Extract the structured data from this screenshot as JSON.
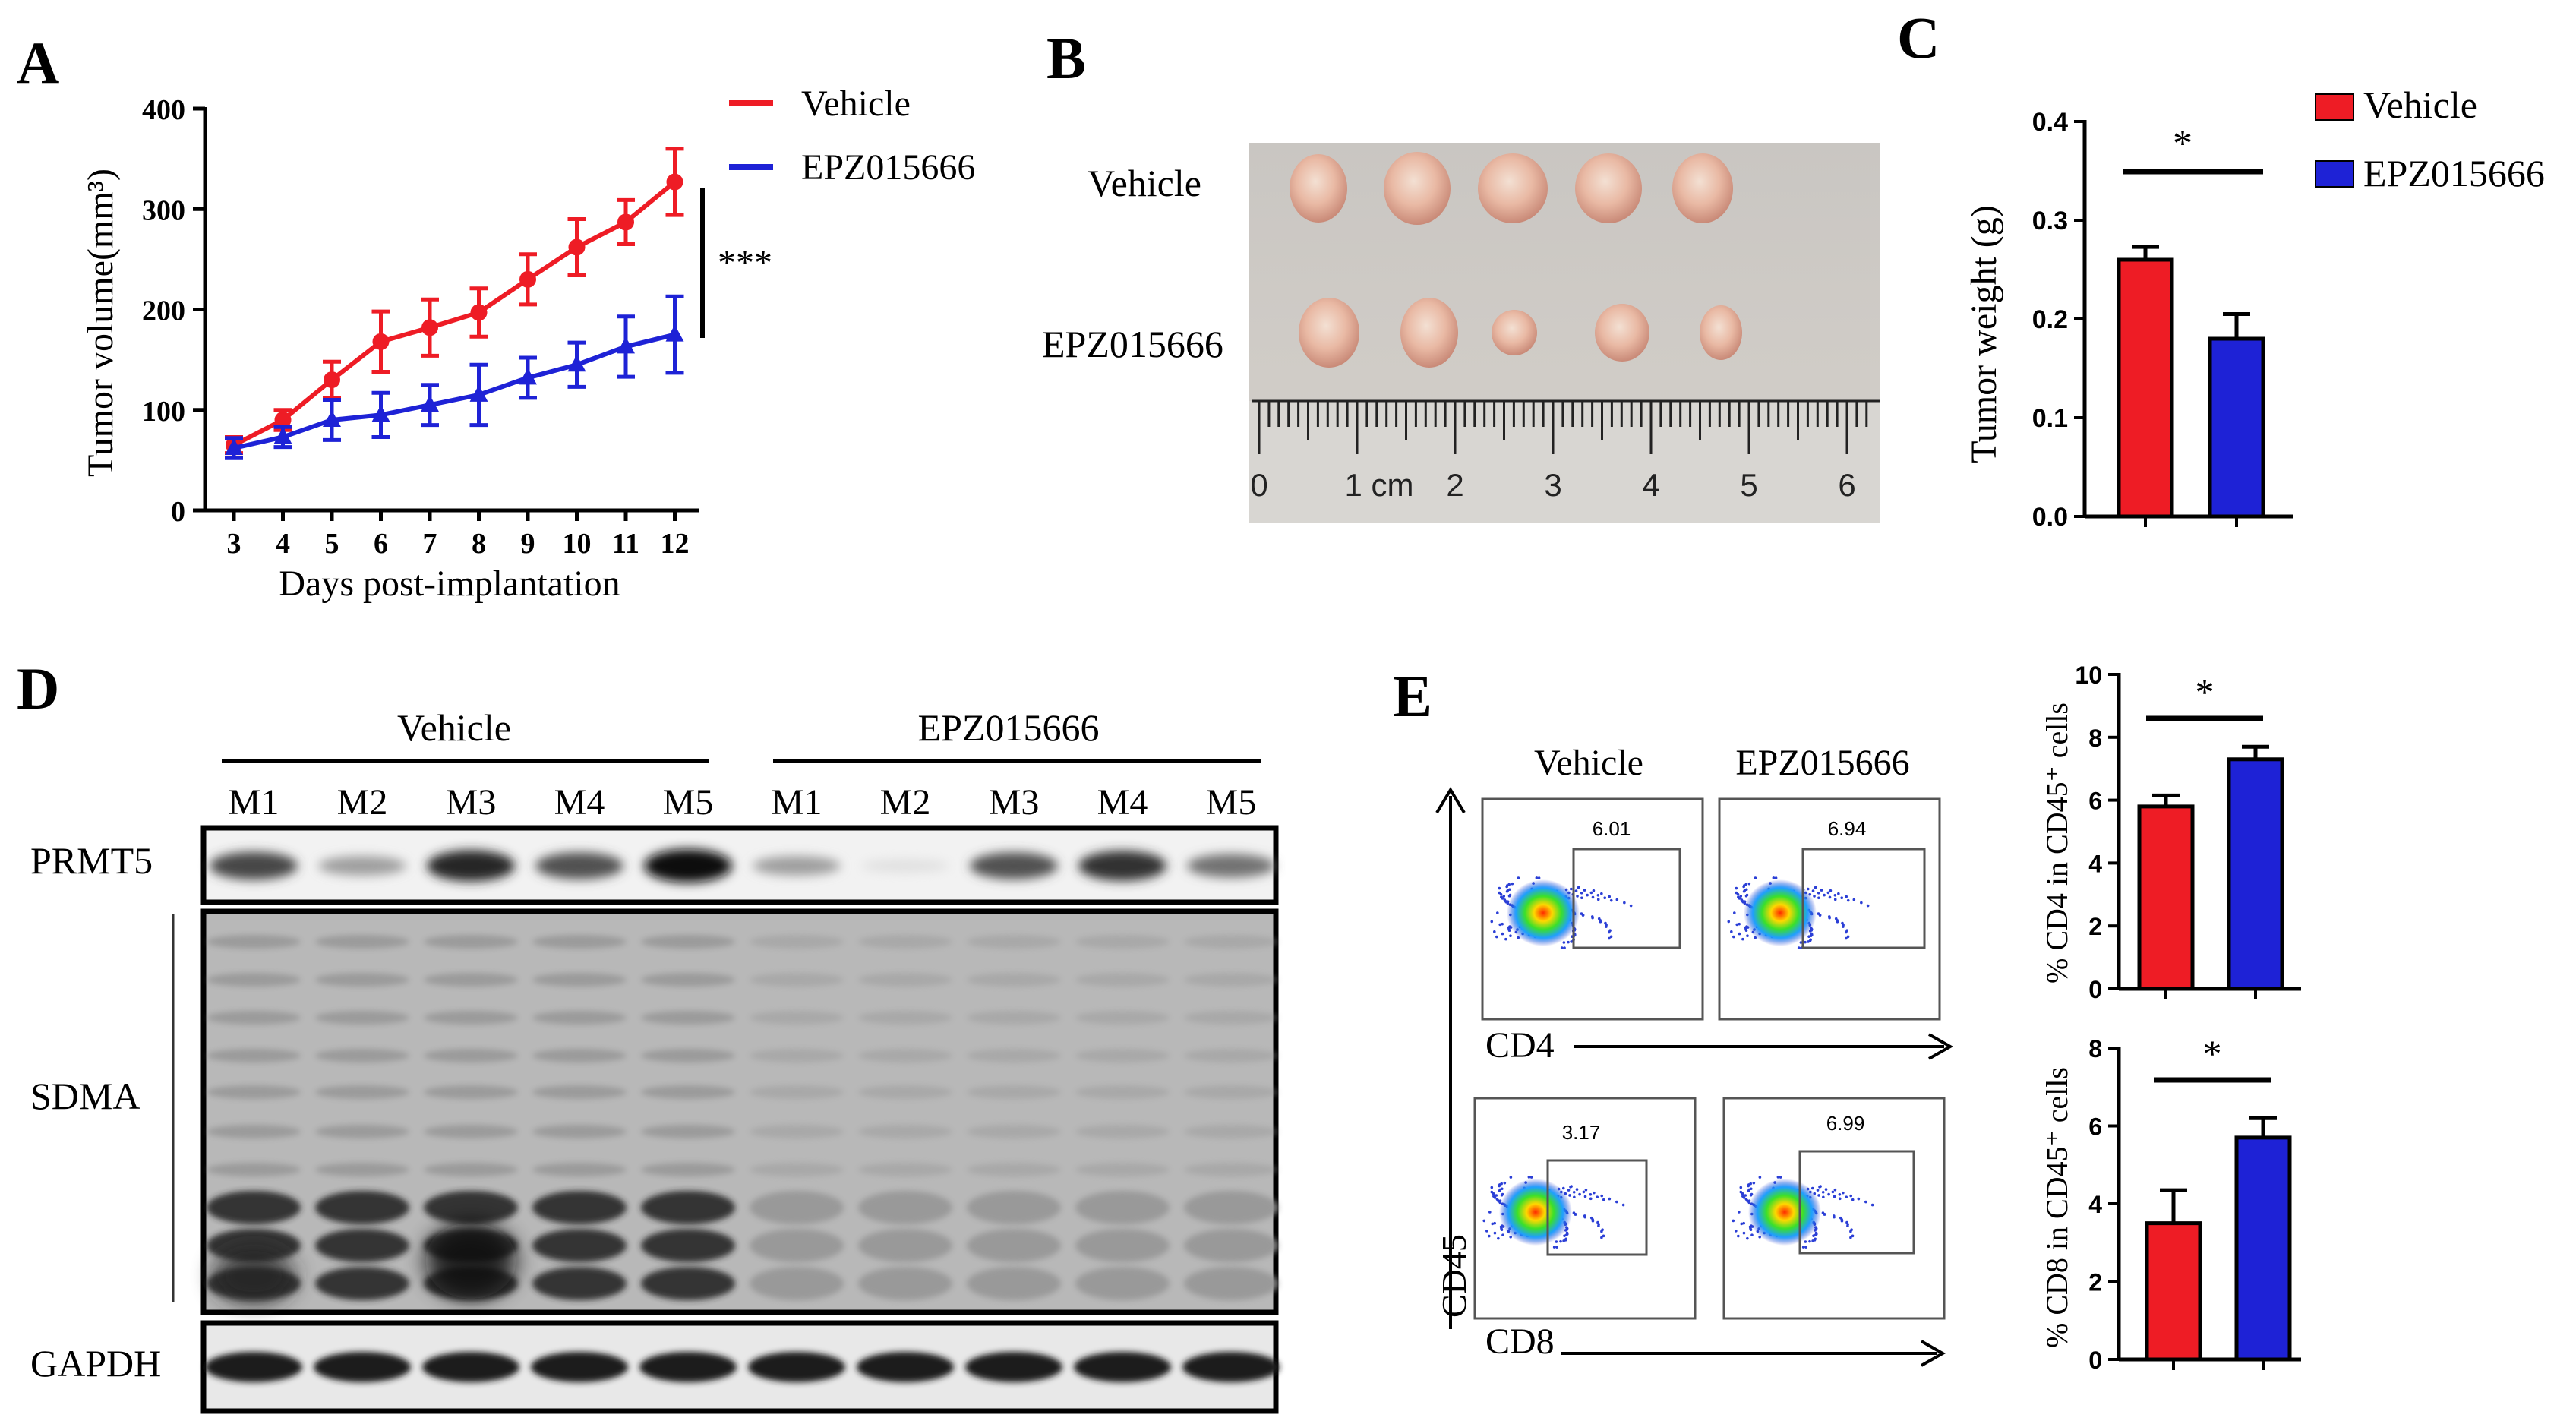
{
  "panels": {
    "A": "A",
    "B": "B",
    "C": "C",
    "D": "D",
    "E": "E"
  },
  "colors": {
    "vehicle": "#ee1c25",
    "epz": "#1e22d6"
  },
  "legend": {
    "vehicle": "Vehicle",
    "epz": "EPZ015666"
  },
  "panelA": {
    "ylabel": "Tumor volume(mm³)",
    "xlabel": "Days post-implantation",
    "significance": "***",
    "chart_data": {
      "type": "line",
      "x": [
        3,
        4,
        5,
        6,
        7,
        8,
        9,
        10,
        11,
        12
      ],
      "xlabel": "Days post-implantation",
      "ylabel": "Tumor volume(mm³)",
      "ylim": [
        0,
        400
      ],
      "yticks": [
        0,
        100,
        200,
        300,
        400
      ],
      "series": [
        {
          "name": "Vehicle",
          "values": [
            65,
            90,
            130,
            168,
            182,
            197,
            230,
            262,
            287,
            327
          ],
          "errors": [
            8,
            10,
            18,
            30,
            28,
            24,
            25,
            28,
            22,
            33
          ]
        },
        {
          "name": "EPZ015666",
          "values": [
            62,
            73,
            90,
            95,
            105,
            115,
            132,
            145,
            163,
            175
          ],
          "errors": [
            10,
            10,
            20,
            22,
            20,
            30,
            20,
            22,
            30,
            38
          ]
        }
      ]
    }
  },
  "panelB": {
    "row_labels": [
      "Vehicle",
      "EPZ015666"
    ],
    "ruler_labels": [
      "0",
      "1 cm",
      "2",
      "3",
      "4",
      "5",
      "6"
    ]
  },
  "panelC": {
    "ylabel": "Tumor weight (g)",
    "significance": "*",
    "chart_data": {
      "type": "bar",
      "categories": [
        "Vehicle",
        "EPZ015666"
      ],
      "values": [
        0.26,
        0.18
      ],
      "errors": [
        0.013,
        0.025
      ],
      "ylabel": "Tumor weight (g)",
      "ylim": [
        0,
        0.4
      ],
      "yticks": [
        "0.0",
        "0.1",
        "0.2",
        "0.3",
        "0.4"
      ]
    }
  },
  "panelD": {
    "group_labels": [
      "Vehicle",
      "EPZ015666"
    ],
    "lanes": [
      "M1",
      "M2",
      "M3",
      "M4",
      "M5",
      "M1",
      "M2",
      "M3",
      "M4",
      "M5"
    ],
    "blots": [
      "PRMT5",
      "SDMA",
      "GAPDH"
    ],
    "prmt5_intensity": [
      0.75,
      0.35,
      0.9,
      0.7,
      1.0,
      0.35,
      0.05,
      0.7,
      0.85,
      0.55
    ]
  },
  "panelE": {
    "col_labels": [
      "Vehicle",
      "EPZ015666"
    ],
    "axis_x1": "CD4",
    "axis_x2": "CD8",
    "axis_y": "CD45",
    "gates": {
      "cd4_vehicle": "6.01",
      "cd4_epz": "6.94",
      "cd8_vehicle": "3.17",
      "cd8_epz": "6.99"
    },
    "top_chart": {
      "ylabel": "% CD4 in CD45⁺ cells",
      "significance": "*",
      "chart_data": {
        "type": "bar",
        "categories": [
          "Vehicle",
          "EPZ015666"
        ],
        "values": [
          5.8,
          7.3
        ],
        "errors": [
          0.35,
          0.4
        ],
        "ylim": [
          0,
          10
        ],
        "yticks": [
          "0",
          "2",
          "4",
          "6",
          "8",
          "10"
        ]
      }
    },
    "bottom_chart": {
      "ylabel": "% CD8 in CD45⁺ cells",
      "significance": "*",
      "chart_data": {
        "type": "bar",
        "categories": [
          "Vehicle",
          "EPZ015666"
        ],
        "values": [
          3.5,
          5.7
        ],
        "errors": [
          0.85,
          0.5
        ],
        "ylim": [
          0,
          8
        ],
        "yticks": [
          "0",
          "2",
          "4",
          "6",
          "8"
        ]
      }
    }
  }
}
